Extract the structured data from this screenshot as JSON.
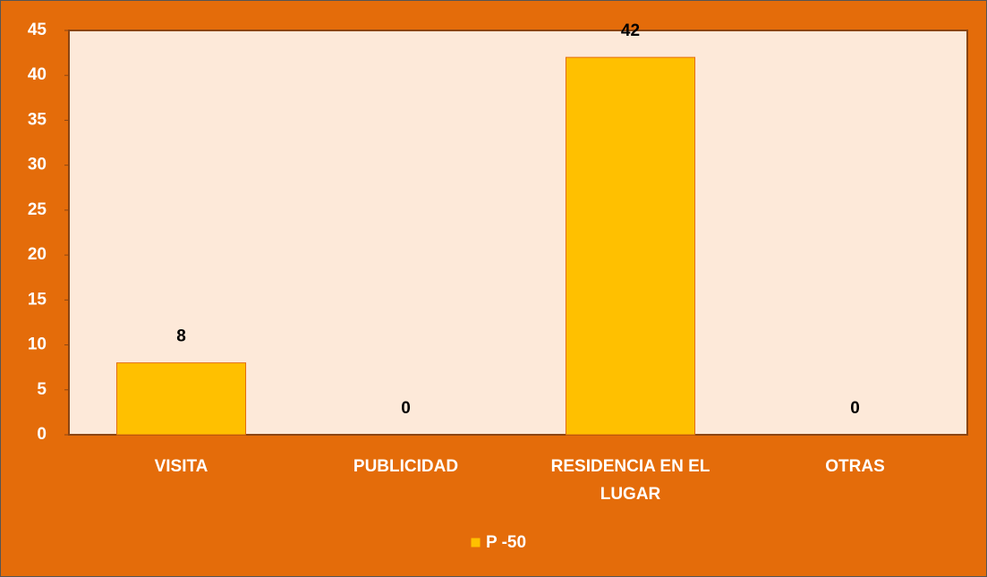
{
  "chart_data": {
    "type": "bar",
    "categories": [
      "VISITA",
      "PUBLICIDAD",
      "RESIDENCIA EN EL LUGAR",
      "OTRAS"
    ],
    "series": [
      {
        "name": "P -50",
        "color": "#ffc000",
        "values": [
          8,
          0,
          42,
          0
        ]
      }
    ],
    "ylim": [
      0,
      45
    ],
    "yticks": [
      0,
      5,
      10,
      15,
      20,
      25,
      30,
      35,
      40,
      45
    ],
    "legend": "bottom"
  }
}
